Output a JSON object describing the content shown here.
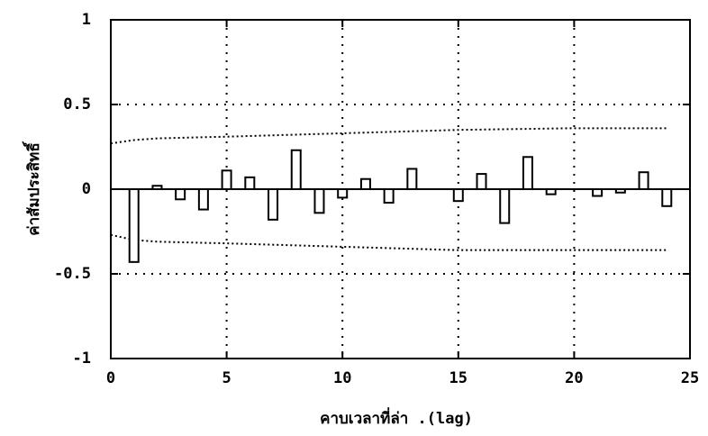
{
  "chart_data": {
    "type": "bar",
    "x_label": "คาบเวลาที่ล่า .(lag)",
    "y_label": "ค่าสัมประสิทธิ์",
    "x": [
      1,
      2,
      3,
      4,
      5,
      6,
      7,
      8,
      9,
      10,
      11,
      12,
      13,
      14,
      15,
      16,
      17,
      18,
      19,
      20,
      21,
      22,
      23,
      24
    ],
    "values": [
      -0.43,
      0.02,
      -0.06,
      -0.12,
      0.11,
      0.07,
      -0.18,
      0.23,
      -0.14,
      -0.05,
      0.06,
      -0.08,
      0.12,
      0,
      -0.07,
      0.09,
      -0.2,
      0.19,
      -0.03,
      0,
      -0.04,
      -0.02,
      0.1,
      -0.1
    ],
    "color": "#ffffff",
    "bounds": [
      {
        "x": [
          0,
          1,
          2,
          5,
          10,
          15,
          20,
          24
        ],
        "values": [
          0.27,
          0.29,
          0.3,
          0.31,
          0.33,
          0.35,
          0.36,
          0.36
        ]
      },
      {
        "x": [
          0,
          1,
          2,
          5,
          10,
          15,
          20,
          24
        ],
        "values": [
          -0.27,
          -0.3,
          -0.31,
          -0.32,
          -0.34,
          -0.36,
          -0.36,
          -0.36
        ]
      }
    ],
    "xlim": [
      0,
      25
    ],
    "xticks": [
      0,
      5,
      10,
      15,
      20,
      25
    ],
    "ylim": [
      -1,
      1
    ],
    "yticks": [
      -1,
      -0.5,
      0,
      0.5,
      1
    ],
    "grid": true
  }
}
